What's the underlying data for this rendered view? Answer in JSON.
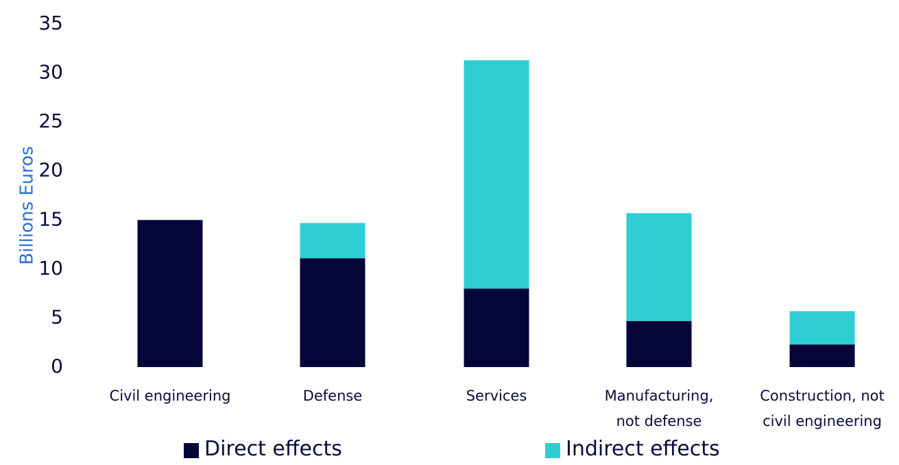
{
  "chart_data": {
    "type": "bar",
    "stacked": true,
    "title": "",
    "xlabel": "",
    "ylabel": "Billions Euros",
    "ylim": [
      0,
      35
    ],
    "yticks": [
      0,
      5,
      10,
      15,
      20,
      25,
      30,
      35
    ],
    "grid": false,
    "legend_position": "bottom",
    "categories": [
      [
        "Civil engineering"
      ],
      [
        "Defense"
      ],
      [
        "Services"
      ],
      [
        "Manufacturing,",
        "not defense"
      ],
      [
        "Construction, not",
        "civil engineering"
      ]
    ],
    "series": [
      {
        "name": "Direct effects",
        "color": "#06053a",
        "values": [
          15.0,
          11.1,
          8.0,
          4.7,
          2.3
        ]
      },
      {
        "name": "Indirect effects",
        "color": "#2ecdd3",
        "values": [
          0.0,
          3.6,
          23.3,
          11.0,
          3.4
        ]
      }
    ],
    "colors": {
      "axis_text": "#0b0b3b",
      "ylabel": "#2b6fd6"
    }
  }
}
